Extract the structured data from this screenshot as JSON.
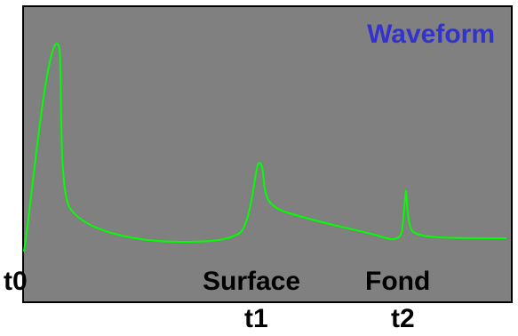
{
  "diagram": {
    "title": "Waveform",
    "colors": {
      "background": "#808080",
      "waveform": "#00ff00",
      "title": "#3333cc"
    },
    "labels": {
      "t0": "t0",
      "surface": "Surface",
      "fond": "Fond",
      "t1": "t1",
      "t2": "t2"
    }
  }
}
